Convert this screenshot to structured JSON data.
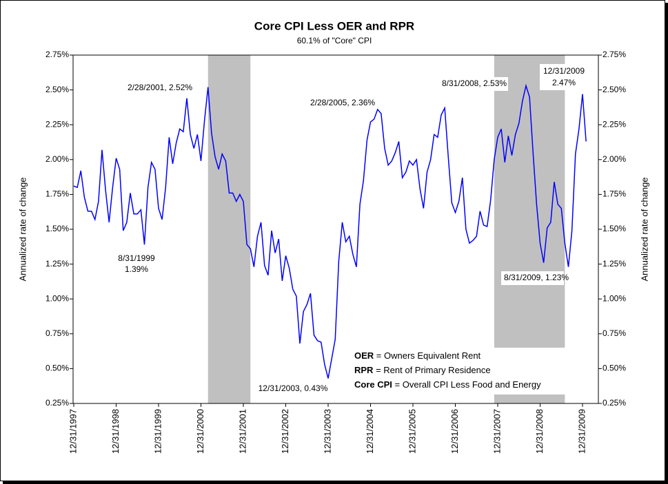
{
  "chart_data": {
    "type": "line",
    "title": "Core CPI Less OER and RPR",
    "subtitle": "60.1% of \"Core\" CPI",
    "ylabel": "Annualized rate of change",
    "y2label": "Annualized rate of change",
    "color": "#0000ff",
    "shade_color": "#c0c0c0",
    "categories": [
      "12/31/1997",
      "1/31/1998",
      "2/28/1998",
      "3/31/1998",
      "4/30/1998",
      "5/31/1998",
      "6/30/1998",
      "7/31/1998",
      "8/31/1998",
      "9/30/1998",
      "10/31/1998",
      "11/30/1998",
      "12/31/1998",
      "1/31/1999",
      "2/28/1999",
      "3/31/1999",
      "4/30/1999",
      "5/31/1999",
      "6/30/1999",
      "7/31/1999",
      "8/31/1999",
      "9/30/1999",
      "10/31/1999",
      "11/30/1999",
      "12/31/1999",
      "1/31/2000",
      "2/29/2000",
      "3/31/2000",
      "4/30/2000",
      "5/31/2000",
      "6/30/2000",
      "7/31/2000",
      "8/31/2000",
      "9/30/2000",
      "10/31/2000",
      "11/30/2000",
      "12/31/2000",
      "1/31/2001",
      "2/28/2001",
      "3/31/2001",
      "4/30/2001",
      "5/31/2001",
      "6/30/2001",
      "7/31/2001",
      "8/31/2001",
      "9/30/2001",
      "10/31/2001",
      "11/30/2001",
      "12/31/2001",
      "1/31/2002",
      "2/28/2002",
      "3/31/2002",
      "4/30/2002",
      "5/31/2002",
      "6/30/2002",
      "7/31/2002",
      "8/31/2002",
      "9/30/2002",
      "10/31/2002",
      "11/30/2002",
      "12/31/2002",
      "1/31/2003",
      "2/28/2003",
      "3/31/2003",
      "4/30/2003",
      "5/31/2003",
      "6/30/2003",
      "7/31/2003",
      "8/31/2003",
      "9/30/2003",
      "10/31/2003",
      "11/30/2003",
      "12/31/2003",
      "1/31/2004",
      "2/29/2004",
      "3/31/2004",
      "4/30/2004",
      "5/31/2004",
      "6/30/2004",
      "7/31/2004",
      "8/31/2004",
      "9/30/2004",
      "10/31/2004",
      "11/30/2004",
      "12/31/2004",
      "1/31/2005",
      "2/28/2005",
      "3/31/2005",
      "4/30/2005",
      "5/31/2005",
      "6/30/2005",
      "7/31/2005",
      "8/31/2005",
      "9/30/2005",
      "10/31/2005",
      "11/30/2005",
      "12/31/2005",
      "1/31/2006",
      "2/28/2006",
      "3/31/2006",
      "4/30/2006",
      "5/31/2006",
      "6/30/2006",
      "7/31/2006",
      "8/31/2006",
      "9/30/2006",
      "10/31/2006",
      "11/30/2006",
      "12/31/2006",
      "1/31/2007",
      "2/28/2007",
      "3/31/2007",
      "4/30/2007",
      "5/31/2007",
      "6/30/2007",
      "7/31/2007",
      "8/31/2007",
      "9/30/2007",
      "10/31/2007",
      "11/30/2007",
      "12/31/2007",
      "1/31/2008",
      "2/29/2008",
      "3/31/2008",
      "4/30/2008",
      "5/31/2008",
      "6/30/2008",
      "7/31/2008",
      "8/31/2008",
      "9/30/2008",
      "10/31/2008",
      "11/30/2008",
      "12/31/2008",
      "1/31/2009",
      "2/28/2009",
      "3/31/2009",
      "4/30/2009",
      "5/31/2009",
      "6/30/2009",
      "7/31/2009",
      "8/31/2009",
      "9/30/2009",
      "10/31/2009",
      "11/30/2009",
      "12/31/2009",
      "1/31/2010"
    ],
    "values": [
      1.81,
      1.8,
      1.92,
      1.73,
      1.63,
      1.63,
      1.57,
      1.7,
      2.07,
      1.78,
      1.55,
      1.8,
      2.01,
      1.93,
      1.49,
      1.55,
      1.76,
      1.61,
      1.61,
      1.64,
      1.39,
      1.8,
      1.98,
      1.93,
      1.65,
      1.57,
      1.8,
      2.16,
      1.97,
      2.12,
      2.22,
      2.2,
      2.44,
      2.18,
      2.08,
      2.18,
      1.99,
      2.28,
      2.52,
      2.19,
      2.02,
      1.93,
      2.04,
      1.99,
      1.76,
      1.76,
      1.7,
      1.75,
      1.7,
      1.39,
      1.36,
      1.23,
      1.45,
      1.55,
      1.24,
      1.17,
      1.49,
      1.33,
      1.43,
      1.13,
      1.31,
      1.22,
      1.07,
      1.02,
      0.68,
      0.91,
      0.96,
      1.04,
      0.74,
      0.7,
      0.69,
      0.53,
      0.43,
      0.57,
      0.71,
      1.27,
      1.55,
      1.41,
      1.45,
      1.32,
      1.23,
      1.68,
      1.85,
      2.14,
      2.27,
      2.29,
      2.36,
      2.33,
      2.08,
      1.96,
      1.99,
      2.05,
      2.13,
      1.87,
      1.91,
      1.99,
      1.96,
      2.0,
      1.79,
      1.65,
      1.91,
      2.0,
      2.18,
      2.16,
      2.32,
      2.37,
      2.02,
      1.69,
      1.62,
      1.7,
      1.87,
      1.5,
      1.4,
      1.42,
      1.45,
      1.63,
      1.53,
      1.52,
      1.71,
      2.0,
      2.16,
      2.22,
      1.98,
      2.17,
      2.03,
      2.18,
      2.26,
      2.42,
      2.53,
      2.45,
      2.05,
      1.68,
      1.4,
      1.26,
      1.51,
      1.55,
      1.84,
      1.68,
      1.65,
      1.4,
      1.23,
      1.49,
      2.04,
      2.22,
      2.47,
      2.13
    ],
    "xticks": [
      "12/31/1997",
      "12/31/1998",
      "12/31/1999",
      "12/31/2000",
      "12/31/2001",
      "12/31/2002",
      "12/31/2003",
      "12/31/2004",
      "12/31/2005",
      "12/31/2006",
      "12/31/2007",
      "12/31/2008",
      "12/31/2009"
    ],
    "shaded_periods": [
      {
        "start": "2/28/2001",
        "end": "2/28/2002"
      },
      {
        "start": "11/30/2007",
        "end": "7/31/2009"
      }
    ],
    "ylim": [
      0.25,
      2.75
    ],
    "yticks": [
      {
        "value": 0.25,
        "label": "0.25%"
      },
      {
        "value": 0.5,
        "label": "0.50%"
      },
      {
        "value": 0.75,
        "label": "0.75%"
      },
      {
        "value": 1.0,
        "label": "1.00%"
      },
      {
        "value": 1.25,
        "label": "1.25%"
      },
      {
        "value": 1.5,
        "label": "1.50%"
      },
      {
        "value": 1.75,
        "label": "1.75%"
      },
      {
        "value": 2.0,
        "label": "2.00%"
      },
      {
        "value": 2.25,
        "label": "2.25%"
      },
      {
        "value": 2.5,
        "label": "2.50%"
      },
      {
        "value": 2.75,
        "label": "2.75%"
      }
    ],
    "y2lim": [
      0.25,
      2.75
    ],
    "y2ticks": [
      {
        "value": 0.25,
        "label": "0.25%"
      },
      {
        "value": 0.5,
        "label": "0.50%"
      },
      {
        "value": 0.75,
        "label": "0.75%"
      },
      {
        "value": 1.0,
        "label": "1.00%"
      },
      {
        "value": 1.25,
        "label": "1.25%"
      },
      {
        "value": 1.5,
        "label": "1.50%"
      },
      {
        "value": 1.75,
        "label": "1.75%"
      },
      {
        "value": 2.0,
        "label": "2.00%"
      },
      {
        "value": 2.25,
        "label": "2.25%"
      },
      {
        "value": 2.5,
        "label": "2.50%"
      },
      {
        "value": 2.75,
        "label": "2.75%"
      }
    ],
    "annotations": [
      [
        "2/28/2001, 2.52%"
      ],
      [
        "8/31/1999",
        "1.39%"
      ],
      [
        "2/28/2005, 2.36%"
      ],
      [
        "12/31/2003, 0.43%"
      ],
      [
        "8/31/2008, 2.53%"
      ],
      [
        "12/31/2009",
        "2.47%"
      ],
      [
        "8/31/2009, 1.23%"
      ]
    ],
    "notes": [
      {
        "term": "OER",
        "definition": " = Owners Equivalent Rent"
      },
      {
        "term": "RPR",
        "definition": " = Rent of Primary Residence"
      },
      {
        "term": "Core CPI",
        "definition": " = Overall CPI Less Food and Energy"
      }
    ]
  }
}
